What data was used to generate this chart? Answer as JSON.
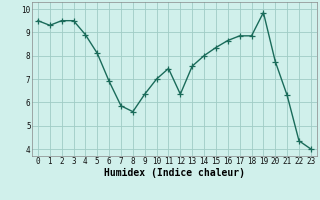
{
  "x": [
    0,
    1,
    2,
    3,
    4,
    5,
    6,
    7,
    8,
    9,
    10,
    11,
    12,
    13,
    14,
    15,
    16,
    17,
    18,
    19,
    20,
    21,
    22,
    23
  ],
  "y": [
    9.5,
    9.3,
    9.5,
    9.5,
    8.9,
    8.1,
    6.9,
    5.85,
    5.6,
    6.35,
    7.0,
    7.45,
    6.35,
    7.55,
    8.0,
    8.35,
    8.65,
    8.85,
    8.85,
    9.85,
    7.75,
    6.3,
    4.35,
    4.0
  ],
  "line_color": "#1a6b5a",
  "marker": "+",
  "marker_size": 4,
  "linewidth": 1.0,
  "bg_color": "#d0f0eb",
  "grid_color": "#a0ccc5",
  "xlabel": "Humidex (Indice chaleur)",
  "xlabel_fontsize": 7,
  "ylabel_ticks": [
    4,
    5,
    6,
    7,
    8,
    9,
    10
  ],
  "xlim": [
    -0.5,
    23.5
  ],
  "ylim": [
    3.7,
    10.3
  ],
  "tick_fontsize": 5.5
}
